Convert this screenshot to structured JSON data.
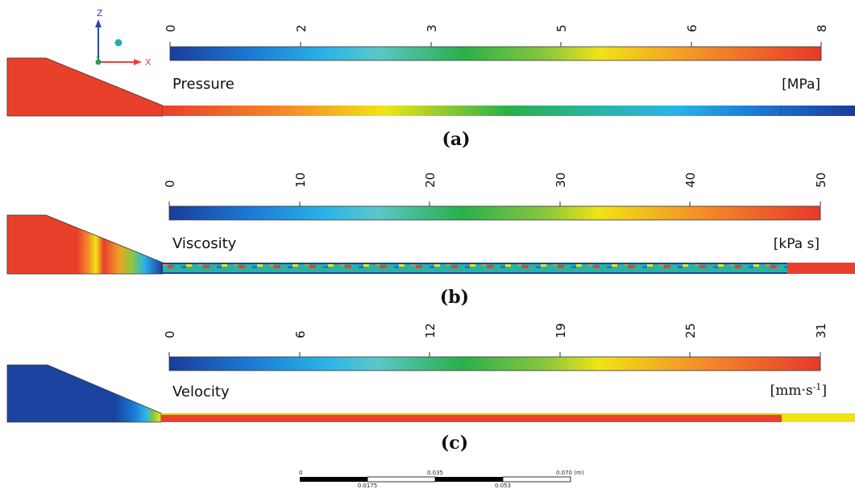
{
  "panels": [
    {
      "id": "a",
      "caption": "(a)",
      "quantity": "Pressure",
      "unit": "[MPa]",
      "ticks": [
        "0",
        "2",
        "3",
        "5",
        "6",
        "8"
      ]
    },
    {
      "id": "b",
      "caption": "(b)",
      "quantity": "Viscosity",
      "unit": "[kPa s]",
      "ticks": [
        "0",
        "10",
        "20",
        "30",
        "40",
        "50"
      ]
    },
    {
      "id": "c",
      "caption": "(c)",
      "quantity": "Velocity",
      "unit": "[mm·s-1]",
      "unit_main": "[mm·s",
      "unit_sup": "-1",
      "unit_end": "]",
      "ticks": [
        "0",
        "6",
        "12",
        "19",
        "25",
        "31"
      ]
    }
  ],
  "axes_triad": {
    "z": "Z",
    "x": "X",
    "y": "Y"
  },
  "scale_bar": {
    "top_labels": [
      "0",
      "0.035",
      "0.070 (m)"
    ],
    "bottom_labels": [
      "0.0175",
      "0.053"
    ]
  },
  "colors": {
    "rainbow": [
      "#1a3c9c",
      "#1a78d4",
      "#2ab4e8",
      "#5ac8c8",
      "#28b04a",
      "#8cc83c",
      "#f0e414",
      "#f48c28",
      "#e8382a"
    ],
    "domain_red": "#e8402a",
    "domain_blue": "#1a44a0",
    "outline": "#333333"
  }
}
